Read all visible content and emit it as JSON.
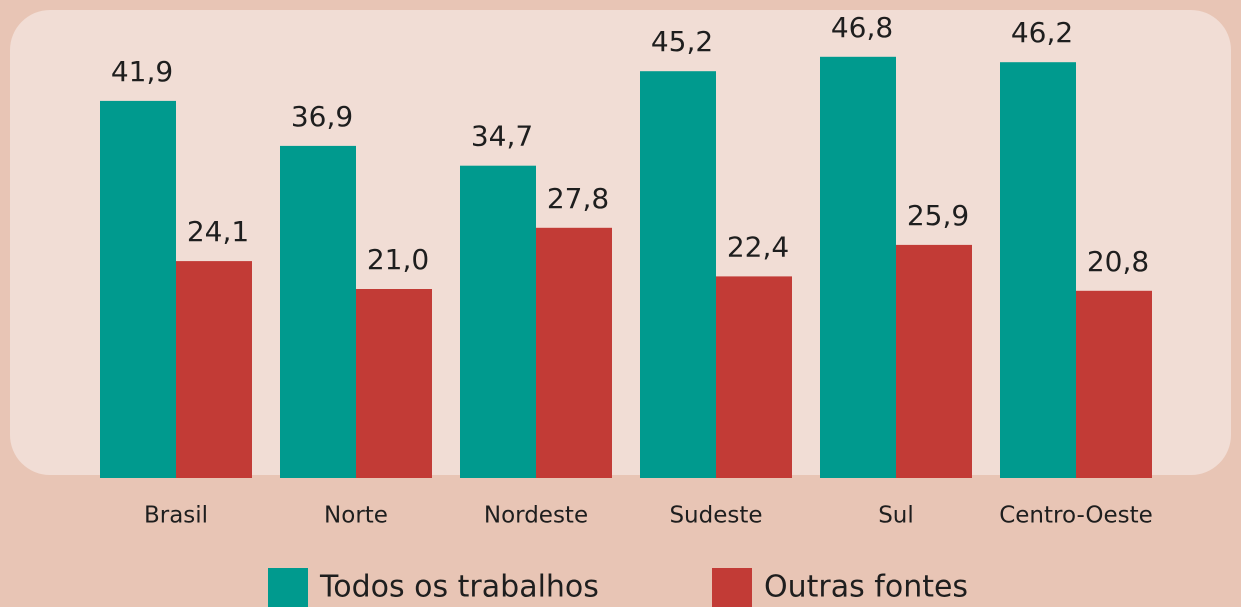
{
  "chart_data": {
    "type": "bar",
    "categories": [
      "Brasil",
      "Norte",
      "Nordeste",
      "Sudeste",
      "Sul",
      "Centro-Oeste"
    ],
    "series": [
      {
        "name": "Todos os trabalhos",
        "color": "#009a8e",
        "values": [
          41.9,
          36.9,
          34.7,
          45.2,
          46.8,
          46.2
        ],
        "value_labels": [
          "41,9",
          "36,9",
          "34,7",
          "45,2",
          "46,8",
          "46,2"
        ]
      },
      {
        "name": "Outras fontes",
        "color": "#c23b36",
        "values": [
          24.1,
          21.0,
          27.8,
          22.4,
          25.9,
          20.8
        ],
        "value_labels": [
          "24,1",
          "21,0",
          "27,8",
          "22,4",
          "25,9",
          "20,8"
        ]
      }
    ],
    "ylim": [
      0,
      50
    ]
  }
}
